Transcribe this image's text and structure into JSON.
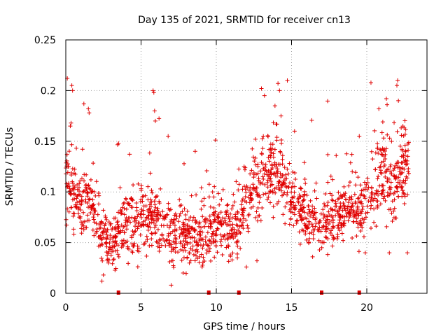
{
  "chart_data": {
    "type": "scatter",
    "title": "Day 135 of 2021, SRMTID for receiver cn13",
    "xlabel": "GPS time / hours",
    "ylabel": "SRMTID / TECUs",
    "xlim": [
      0,
      24
    ],
    "ylim": [
      0,
      0.25
    ],
    "xticks": [
      0,
      5,
      10,
      15,
      20
    ],
    "xtick_labels": [
      "0",
      "5",
      "10",
      "15",
      "20"
    ],
    "yticks": [
      0,
      0.05,
      0.1,
      0.15,
      0.2,
      0.25
    ],
    "ytick_labels": [
      "0",
      "0.05",
      "0.1",
      "0.15",
      "0.2",
      "0.25"
    ],
    "grid": true,
    "marker": "+",
    "color": "#e00000",
    "gap_markers_hours": [
      3.5,
      9.5,
      11.5,
      17.0,
      19.5
    ],
    "trend": {
      "hours": [
        0,
        0.5,
        1,
        1.5,
        2,
        2.5,
        3,
        3.5,
        4,
        4.5,
        5,
        5.5,
        6,
        6.5,
        7,
        7.5,
        8,
        8.5,
        9,
        9.5,
        10,
        10.5,
        11,
        11.5,
        12,
        12.5,
        13,
        13.5,
        14,
        14.5,
        15,
        15.5,
        16,
        16.5,
        17,
        17.5,
        18,
        18.5,
        19,
        19.5,
        20,
        20.5,
        21,
        21.5,
        22,
        22.5
      ],
      "srmtid": [
        0.11,
        0.1,
        0.08,
        0.09,
        0.075,
        0.06,
        0.045,
        0.06,
        0.07,
        0.06,
        0.075,
        0.08,
        0.07,
        0.065,
        0.055,
        0.06,
        0.055,
        0.06,
        0.055,
        0.065,
        0.07,
        0.07,
        0.065,
        0.07,
        0.085,
        0.1,
        0.11,
        0.12,
        0.12,
        0.115,
        0.09,
        0.08,
        0.07,
        0.075,
        0.075,
        0.07,
        0.075,
        0.08,
        0.085,
        0.07,
        0.09,
        0.11,
        0.125,
        0.1,
        0.11,
        0.12
      ],
      "spread": [
        0.025,
        0.025,
        0.02,
        0.02,
        0.02,
        0.015,
        0.015,
        0.02,
        0.02,
        0.02,
        0.02,
        0.02,
        0.02,
        0.02,
        0.02,
        0.02,
        0.02,
        0.02,
        0.02,
        0.02,
        0.02,
        0.02,
        0.02,
        0.02,
        0.02,
        0.025,
        0.025,
        0.025,
        0.025,
        0.025,
        0.02,
        0.02,
        0.02,
        0.02,
        0.02,
        0.02,
        0.02,
        0.02,
        0.02,
        0.02,
        0.02,
        0.025,
        0.025,
        0.025,
        0.025,
        0.025
      ]
    },
    "outliers": [
      {
        "x": 0.1,
        "y": 0.212
      },
      {
        "x": 0.4,
        "y": 0.205
      },
      {
        "x": 0.45,
        "y": 0.2
      },
      {
        "x": 0.3,
        "y": 0.165
      },
      {
        "x": 0.35,
        "y": 0.168
      },
      {
        "x": 1.2,
        "y": 0.187
      },
      {
        "x": 1.5,
        "y": 0.182
      },
      {
        "x": 1.55,
        "y": 0.178
      },
      {
        "x": 3.5,
        "y": 0.148
      },
      {
        "x": 5.8,
        "y": 0.2
      },
      {
        "x": 5.85,
        "y": 0.198
      },
      {
        "x": 5.9,
        "y": 0.18
      },
      {
        "x": 5.95,
        "y": 0.17
      },
      {
        "x": 6.8,
        "y": 0.155
      },
      {
        "x": 8.6,
        "y": 0.14
      },
      {
        "x": 13.0,
        "y": 0.202
      },
      {
        "x": 13.2,
        "y": 0.195
      },
      {
        "x": 14.1,
        "y": 0.207
      },
      {
        "x": 14.2,
        "y": 0.2
      },
      {
        "x": 13.9,
        "y": 0.185
      },
      {
        "x": 14.3,
        "y": 0.175
      },
      {
        "x": 15.2,
        "y": 0.16
      },
      {
        "x": 19.5,
        "y": 0.155
      },
      {
        "x": 20.8,
        "y": 0.182
      },
      {
        "x": 21.3,
        "y": 0.192
      },
      {
        "x": 21.35,
        "y": 0.186
      },
      {
        "x": 22.0,
        "y": 0.205
      },
      {
        "x": 22.05,
        "y": 0.21
      },
      {
        "x": 22.1,
        "y": 0.19
      },
      {
        "x": 22.4,
        "y": 0.165
      },
      {
        "x": 2.4,
        "y": 0.012
      },
      {
        "x": 2.5,
        "y": 0.018
      },
      {
        "x": 7.0,
        "y": 0.008
      },
      {
        "x": 7.8,
        "y": 0.02
      },
      {
        "x": 12.7,
        "y": 0.032
      },
      {
        "x": 12.0,
        "y": 0.026
      },
      {
        "x": 16.4,
        "y": 0.036
      },
      {
        "x": 19.9,
        "y": 0.04
      },
      {
        "x": 21.5,
        "y": 0.04
      },
      {
        "x": 22.7,
        "y": 0.04
      },
      {
        "x": 10.4,
        "y": 0.038
      },
      {
        "x": 11.4,
        "y": 0.035
      }
    ]
  }
}
